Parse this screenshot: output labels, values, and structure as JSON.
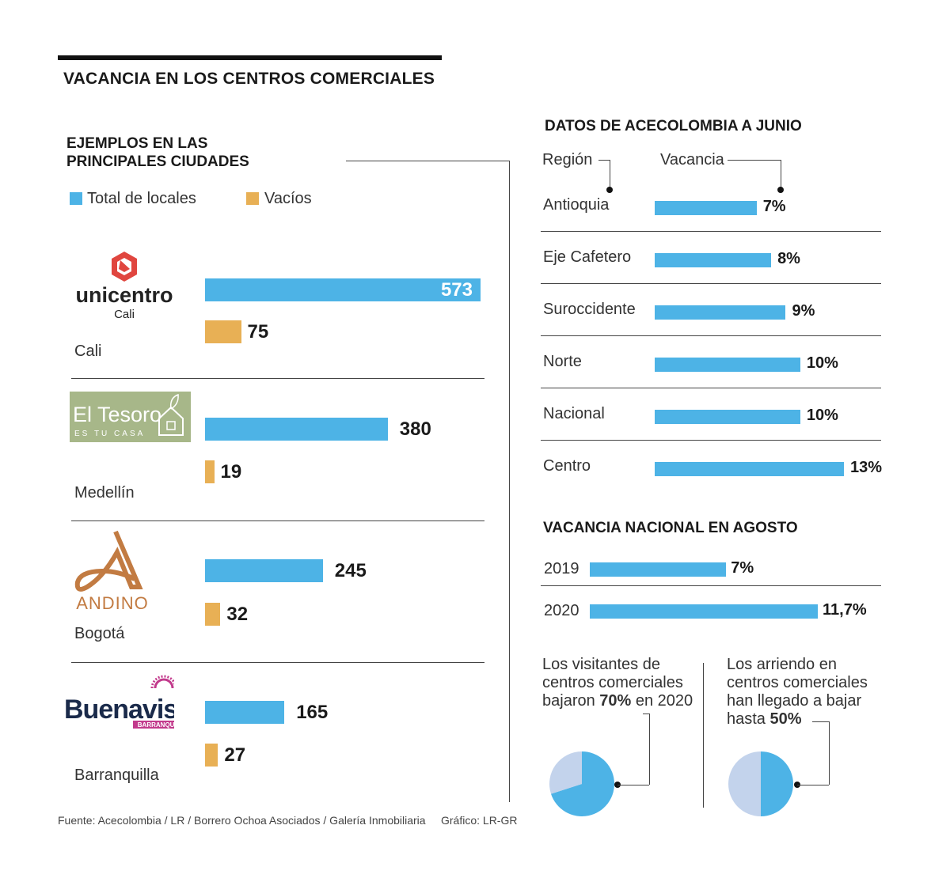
{
  "title": "VACANCIA EN LOS CENTROS COMERCIALES",
  "colors": {
    "total": "#4db3e6",
    "vacios": "#e8b055",
    "pie_light": "#c3d3ec",
    "text": "#1a1a1a"
  },
  "cities_section": {
    "title_line1": "EJEMPLOS EN LAS",
    "title_line2": "PRINCIPALES CIUDADES",
    "legend": {
      "total": "Total de locales",
      "vacios": "Vacíos"
    },
    "logos": {
      "unicentro": {
        "name": "unicentro",
        "sub": "Cali"
      },
      "eltesoro": {
        "name": "El Tesoro",
        "sub": "ES TU CASA"
      },
      "andino": {
        "name": "ANDINO"
      },
      "buenavista": {
        "name": "Buenavista",
        "sub": "BARRANQUILLA"
      }
    }
  },
  "region_section": {
    "title": "DATOS DE ACECOLOMBIA A JUNIO",
    "col_region": "Región",
    "col_vacancia": "Vacancia"
  },
  "national_section": {
    "title": "VACANCIA NACIONAL EN AGOSTO"
  },
  "notes": {
    "visitors": {
      "pre": "Los visitantes de centros comerciales bajaron ",
      "bold": "70%",
      "post": " en 2020"
    },
    "rents": {
      "pre": "Los arriendo en centros comerciales han llegado a bajar hasta ",
      "bold": "50%",
      "post": ""
    }
  },
  "footer": {
    "source": "Fuente: Acecolombia / LR / Borrero Ochoa Asociados / Galería Inmobiliaria",
    "credit": "Gráfico: LR-GR"
  },
  "chart_data": [
    {
      "type": "bar",
      "title": "EJEMPLOS EN LAS PRINCIPALES CIUDADES",
      "categories": [
        "Cali",
        "Medellín",
        "Bogotá",
        "Barranquilla"
      ],
      "series": [
        {
          "name": "Total de locales",
          "values": [
            573,
            380,
            245,
            165
          ]
        },
        {
          "name": "Vacíos",
          "values": [
            75,
            19,
            32,
            27
          ]
        }
      ],
      "xlim": [
        0,
        573
      ]
    },
    {
      "type": "bar",
      "title": "DATOS DE ACECOLOMBIA A JUNIO",
      "categories": [
        "Antioquia",
        "Eje Cafetero",
        "Suroccidente",
        "Norte",
        "Nacional",
        "Centro"
      ],
      "values": [
        7,
        8,
        9,
        10,
        10,
        13
      ],
      "labels": [
        "7%",
        "8%",
        "9%",
        "10%",
        "10%",
        "13%"
      ],
      "xlim": [
        0,
        13
      ]
    },
    {
      "type": "bar",
      "title": "VACANCIA NACIONAL EN AGOSTO",
      "categories": [
        "2019",
        "2020"
      ],
      "values": [
        7,
        11.7
      ],
      "labels": [
        "7%",
        "11,7%"
      ],
      "xlim": [
        0,
        11.7
      ]
    },
    {
      "type": "pie",
      "slices": [
        {
          "label": "70%",
          "value": 70
        },
        {
          "label": "",
          "value": 30
        }
      ]
    },
    {
      "type": "pie",
      "slices": [
        {
          "label": "50%",
          "value": 50
        },
        {
          "label": "",
          "value": 50
        }
      ]
    }
  ]
}
